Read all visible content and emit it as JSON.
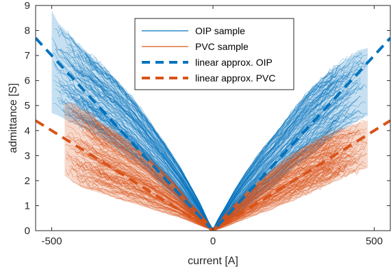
{
  "chart_data": {
    "type": "line",
    "title": "",
    "xlabel": "current [A]",
    "ylabel": "admittance [S]",
    "xlim": [
      -550,
      550
    ],
    "ylim": [
      0,
      9
    ],
    "xticks": [
      -500,
      0,
      500
    ],
    "yticks": [
      0,
      1,
      2,
      3,
      4,
      5,
      6,
      7,
      8,
      9
    ],
    "grid": false,
    "legend_position": "top-center",
    "series": [
      {
        "name": "OIP sample",
        "style": "thin-band",
        "color": "#0072BD",
        "x_left": [
          -500,
          -480,
          -450,
          -400,
          -350,
          -300,
          -250,
          -200,
          -150,
          -100,
          -70,
          -40,
          -15,
          0
        ],
        "upper_left": [
          8.8,
          8.3,
          7.9,
          7.2,
          6.6,
          6.0,
          5.3,
          4.4,
          3.5,
          2.5,
          1.8,
          1.1,
          0.4,
          0.05
        ],
        "lower_left": [
          4.7,
          4.6,
          4.4,
          4.1,
          3.7,
          3.3,
          2.8,
          2.3,
          1.7,
          1.1,
          0.7,
          0.35,
          0.1,
          0.02
        ],
        "x_right": [
          0,
          15,
          40,
          70,
          100,
          150,
          200,
          250,
          300,
          350,
          400,
          450,
          480
        ],
        "upper_right": [
          0.05,
          0.45,
          1.0,
          1.7,
          2.3,
          3.2,
          4.0,
          4.8,
          5.6,
          6.2,
          6.7,
          7.2,
          7.3
        ],
        "lower_right": [
          0.02,
          0.1,
          0.3,
          0.6,
          0.9,
          1.4,
          1.9,
          2.5,
          3.0,
          3.5,
          4.0,
          4.4,
          4.6
        ]
      },
      {
        "name": "PVC sample",
        "style": "thin-band",
        "color": "#D95319",
        "x_left": [
          -460,
          -430,
          -400,
          -350,
          -300,
          -250,
          -200,
          -150,
          -100,
          -70,
          -40,
          -15,
          0
        ],
        "upper_left": [
          5.1,
          5.1,
          4.8,
          4.3,
          3.9,
          3.4,
          2.9,
          2.3,
          1.6,
          1.1,
          0.7,
          0.3,
          0.05
        ],
        "lower_left": [
          2.2,
          1.9,
          1.7,
          1.5,
          1.3,
          1.1,
          0.9,
          0.7,
          0.5,
          0.35,
          0.2,
          0.08,
          0.02
        ],
        "x_right": [
          0,
          15,
          40,
          70,
          100,
          150,
          200,
          250,
          300,
          350,
          400,
          450,
          480
        ],
        "upper_right": [
          0.05,
          0.3,
          0.7,
          1.1,
          1.5,
          2.1,
          2.6,
          3.1,
          3.5,
          3.8,
          4.1,
          4.3,
          4.4
        ],
        "lower_right": [
          0.02,
          0.05,
          0.15,
          0.3,
          0.45,
          0.7,
          0.95,
          1.2,
          1.5,
          1.8,
          2.1,
          2.4,
          2.5
        ]
      },
      {
        "name": "linear approx. OIP",
        "style": "dashed",
        "color": "#0072BD",
        "x": [
          -550,
          0,
          550
        ],
        "y": [
          7.7,
          0,
          7.7
        ]
      },
      {
        "name": "linear approx. PVC",
        "style": "dashed",
        "color": "#D95319",
        "x": [
          -550,
          0,
          550
        ],
        "y": [
          4.4,
          0,
          4.4
        ]
      }
    ]
  }
}
